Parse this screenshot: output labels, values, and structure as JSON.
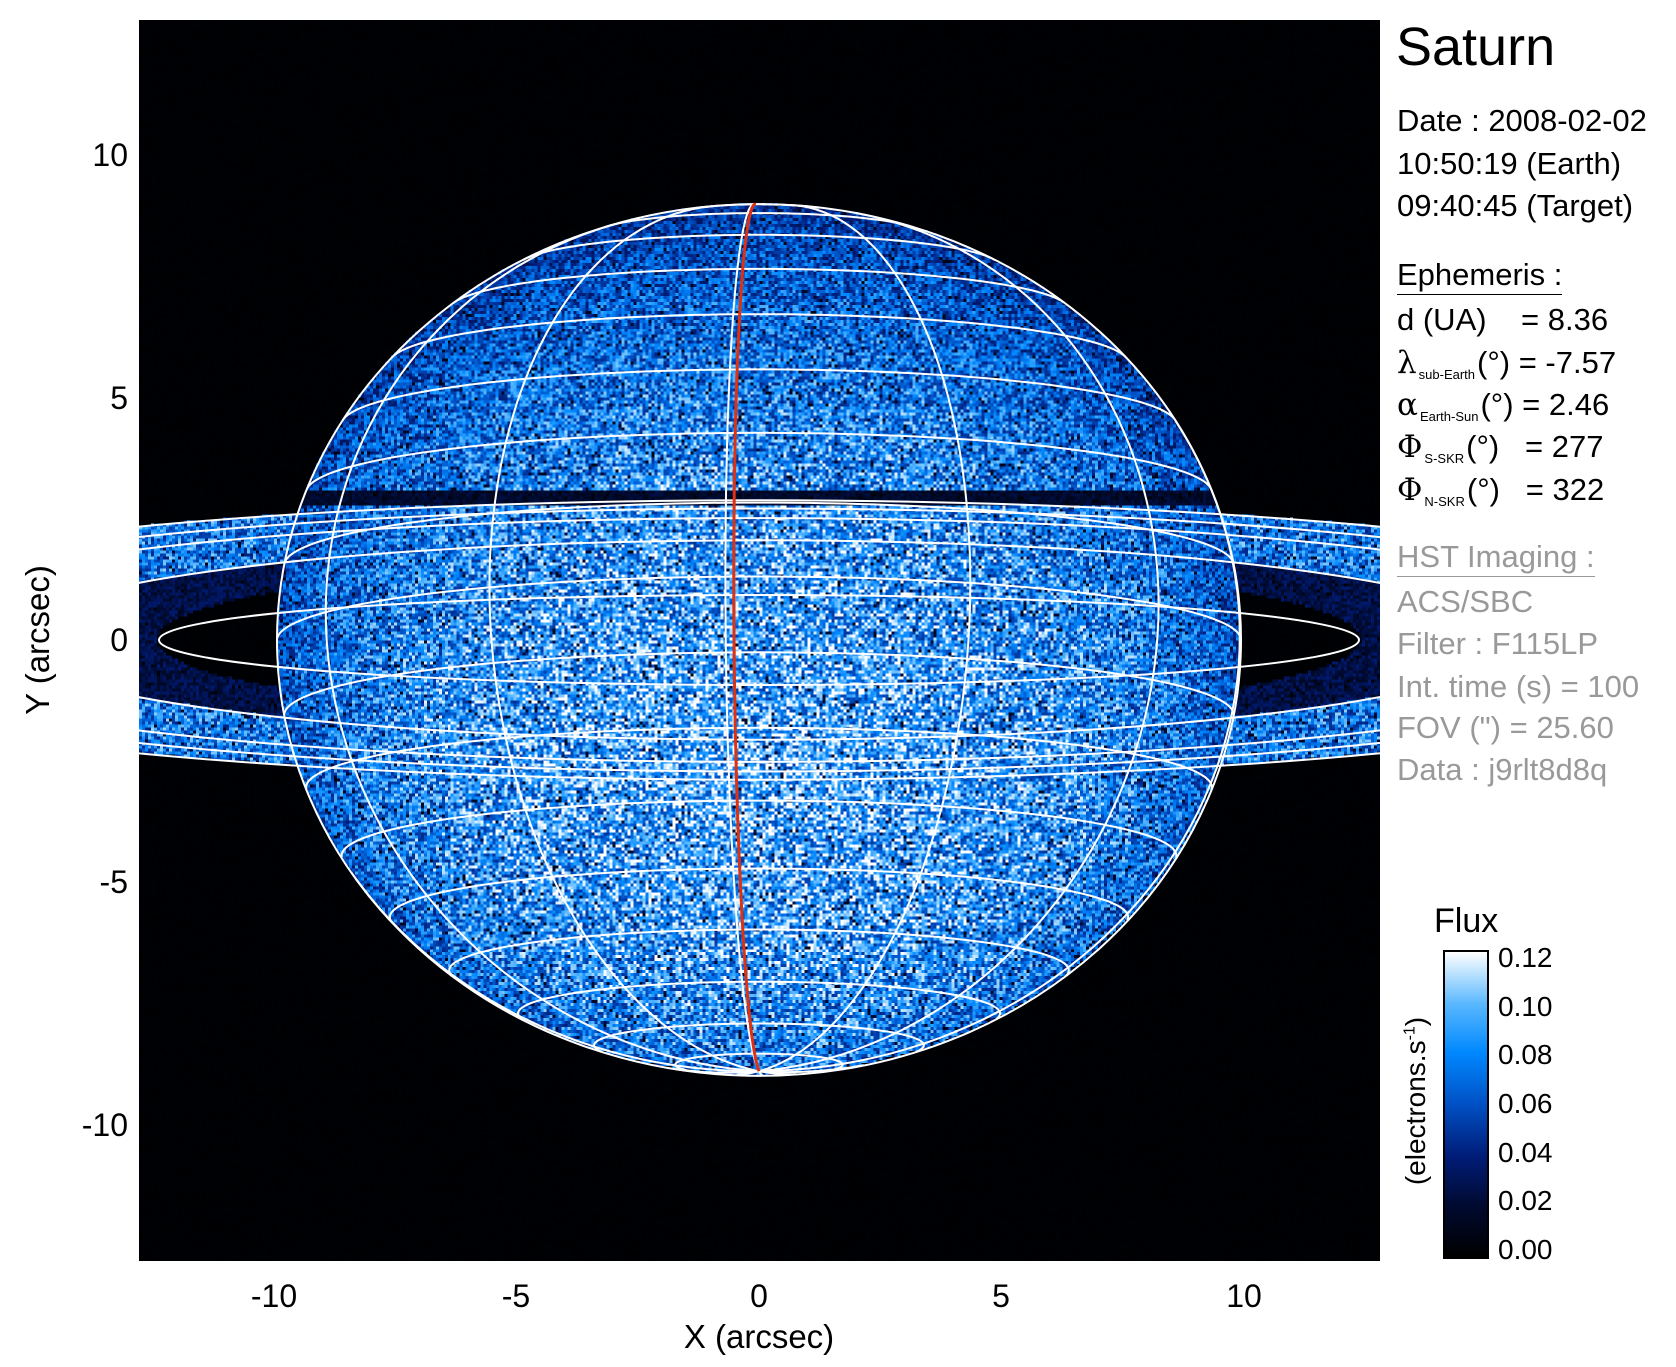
{
  "chart_data": {
    "type": "heatmap",
    "title": "Saturn",
    "xlabel": "X (arcsec)",
    "ylabel": "Y (arcsec)",
    "xlim": [
      -12.8,
      12.8
    ],
    "ylim": [
      -12.8,
      12.8
    ],
    "xticks": [
      "-10",
      "-5",
      "0",
      "5",
      "10"
    ],
    "yticks": [
      "10",
      "5",
      "0",
      "-5",
      "-10"
    ],
    "xtick_values": [
      -10,
      -5,
      0,
      5,
      10
    ],
    "ytick_values": [
      10,
      5,
      0,
      -5,
      -10
    ],
    "grid": "planetocentric lat/lon grid overlay (white), central meridian in red",
    "central_meridian_color": "#e03010",
    "grid_color": "#ffffff",
    "colorbar": {
      "title": "Flux",
      "label": "(electrons.s",
      "label_sup": "-1",
      "label_end": ")",
      "range": [
        0.0,
        0.12
      ],
      "ticks": [
        "0.12",
        "0.10",
        "0.08",
        "0.06",
        "0.04",
        "0.02",
        "0.00"
      ],
      "tick_values": [
        0.12,
        0.1,
        0.08,
        0.06,
        0.04,
        0.02,
        0.0
      ],
      "colormap": [
        "#000000",
        "#000a30",
        "#001c78",
        "#0050c4",
        "#0088ff",
        "#5ab8ff",
        "#ffffff"
      ]
    }
  },
  "info": {
    "date": "Date : 2008-02-02",
    "time_earth": "10:50:19 (Earth)",
    "time_target": "09:40:45 (Target)",
    "ephemeris_title": "Ephemeris :",
    "d_label": "d (UA)",
    "d_value": "= 8.36",
    "lambda_sym": "λ",
    "lambda_sub": "sub-Earth",
    "lambda_value": "(°) = -7.57",
    "alpha_sym": "α",
    "alpha_sub": "Earth-Sun",
    "alpha_value": "(°) = 2.46",
    "phi_sym": "Φ",
    "phi_s_sub": "S-SKR",
    "phi_s_value": "(°)   = 277",
    "phi_n_sub": "N-SKR",
    "phi_n_value": "(°)   = 322",
    "hst_title": "HST Imaging :",
    "instrument": "ACS/SBC",
    "filter": "Filter : F115LP",
    "int_time": "Int. time (s) = 100",
    "fov": "FOV (\") = 25.60",
    "data_id": "Data : j9rlt8d8q"
  }
}
